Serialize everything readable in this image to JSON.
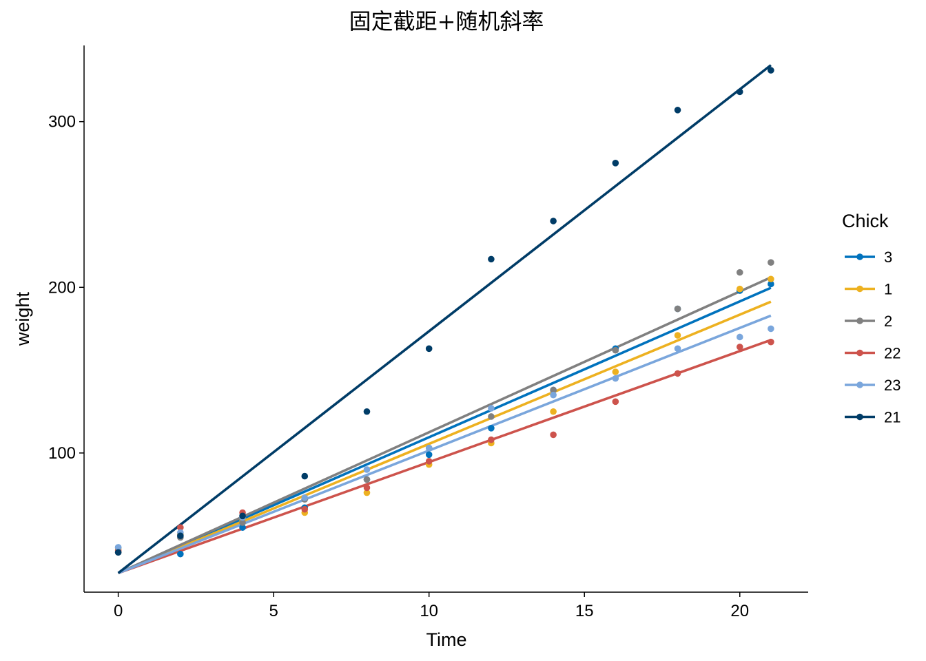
{
  "chart_data": {
    "type": "line",
    "title": "固定截距+随机斜率",
    "xlabel": "Time",
    "ylabel": "weight",
    "xlim": [
      -1.1,
      22.2
    ],
    "ylim": [
      16,
      346
    ],
    "xticks": [
      0,
      5,
      10,
      15,
      20
    ],
    "yticks": [
      100,
      200,
      300
    ],
    "grid": false,
    "legend": {
      "title": "Chick",
      "placement": "right"
    },
    "fixed_intercept": 27.5,
    "series": [
      {
        "name": "3",
        "color": "#0072BD",
        "slope": 8.2,
        "points": [
          [
            0,
            43
          ],
          [
            2,
            39
          ],
          [
            4,
            55
          ],
          [
            6,
            67
          ],
          [
            8,
            84
          ],
          [
            10,
            99
          ],
          [
            12,
            115
          ],
          [
            14,
            138
          ],
          [
            16,
            163
          ],
          [
            18,
            187
          ],
          [
            20,
            198
          ],
          [
            21,
            202
          ]
        ]
      },
      {
        "name": "1",
        "color": "#EDB120",
        "slope": 7.8,
        "points": [
          [
            0,
            42
          ],
          [
            2,
            51
          ],
          [
            4,
            59
          ],
          [
            6,
            64
          ],
          [
            8,
            76
          ],
          [
            10,
            93
          ],
          [
            12,
            106
          ],
          [
            14,
            125
          ],
          [
            16,
            149
          ],
          [
            18,
            171
          ],
          [
            20,
            199
          ],
          [
            21,
            205
          ]
        ]
      },
      {
        "name": "2",
        "color": "#808080",
        "slope": 8.5,
        "points": [
          [
            0,
            40
          ],
          [
            2,
            49
          ],
          [
            4,
            58
          ],
          [
            6,
            72
          ],
          [
            8,
            84
          ],
          [
            10,
            103
          ],
          [
            12,
            122
          ],
          [
            14,
            138
          ],
          [
            16,
            162
          ],
          [
            18,
            187
          ],
          [
            20,
            209
          ],
          [
            21,
            215
          ]
        ]
      },
      {
        "name": "22",
        "color": "#CD534C",
        "slope": 6.7,
        "points": [
          [
            0,
            41
          ],
          [
            2,
            55
          ],
          [
            4,
            64
          ],
          [
            6,
            66
          ],
          [
            8,
            79
          ],
          [
            10,
            95
          ],
          [
            12,
            108
          ],
          [
            14,
            111
          ],
          [
            16,
            131
          ],
          [
            18,
            148
          ],
          [
            20,
            164
          ],
          [
            21,
            167
          ]
        ]
      },
      {
        "name": "23",
        "color": "#7AA6DC",
        "slope": 7.4,
        "points": [
          [
            0,
            43
          ],
          [
            2,
            52
          ],
          [
            4,
            61
          ],
          [
            6,
            73
          ],
          [
            8,
            90
          ],
          [
            10,
            103
          ],
          [
            12,
            127
          ],
          [
            14,
            135
          ],
          [
            16,
            145
          ],
          [
            18,
            163
          ],
          [
            20,
            170
          ],
          [
            21,
            175
          ]
        ]
      },
      {
        "name": "21",
        "color": "#003C67",
        "slope": 14.6,
        "points": [
          [
            0,
            40
          ],
          [
            2,
            50
          ],
          [
            4,
            62
          ],
          [
            6,
            86
          ],
          [
            8,
            125
          ],
          [
            10,
            163
          ],
          [
            12,
            217
          ],
          [
            14,
            240
          ],
          [
            16,
            275
          ],
          [
            18,
            307
          ],
          [
            20,
            318
          ],
          [
            21,
            331
          ]
        ]
      }
    ]
  }
}
